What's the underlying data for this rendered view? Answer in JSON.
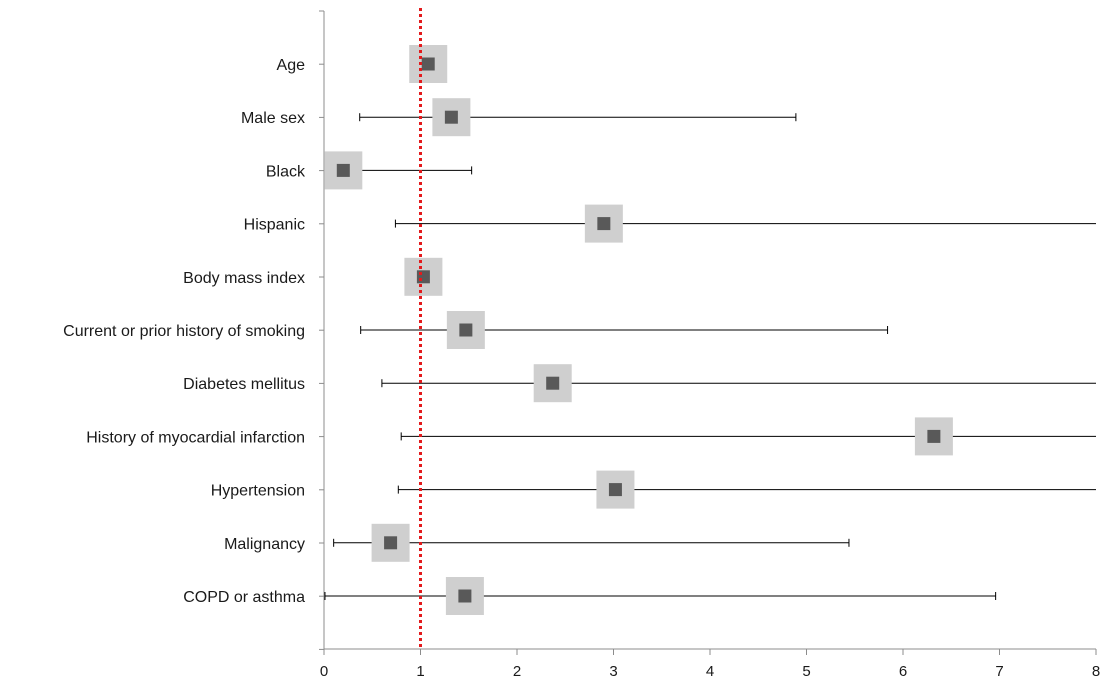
{
  "chart_data": {
    "type": "forest",
    "title": "",
    "xlabel": "",
    "ylabel": "",
    "xlim": [
      0,
      8
    ],
    "xticks": [
      0,
      1,
      2,
      3,
      4,
      5,
      6,
      7,
      8
    ],
    "reference_line": {
      "x": 1,
      "color": "#e31a1c",
      "style": "dotted"
    },
    "grid": false,
    "legend": "none",
    "colors": {
      "point": "#595959",
      "box": "#cfcfcf",
      "whisker": "#000000",
      "axis": "#8c8c8c"
    },
    "rows": [
      {
        "label": "Age",
        "estimate": 1.08,
        "lower": 1.01,
        "upper": 1.16
      },
      {
        "label": "Male sex",
        "estimate": 1.32,
        "lower": 0.37,
        "upper": 4.89
      },
      {
        "label": "Black",
        "estimate": 0.2,
        "lower": 0.03,
        "upper": 1.53
      },
      {
        "label": "Hispanic",
        "estimate": 2.9,
        "lower": 0.74,
        "upper": 8.0,
        "upper_truncated": true
      },
      {
        "label": "Body mass index",
        "estimate": 1.03,
        "lower": 0.96,
        "upper": 1.1
      },
      {
        "label": "Current or prior history of smoking",
        "estimate": 1.47,
        "lower": 0.38,
        "upper": 5.84
      },
      {
        "label": "Diabetes mellitus",
        "estimate": 2.37,
        "lower": 0.6,
        "upper": 8.0,
        "upper_truncated": true
      },
      {
        "label": "History of myocardial infarction",
        "estimate": 6.32,
        "lower": 0.8,
        "upper": 8.0,
        "upper_truncated": true
      },
      {
        "label": "Hypertension",
        "estimate": 3.02,
        "lower": 0.77,
        "upper": 8.0,
        "upper_truncated": true
      },
      {
        "label": "Malignancy",
        "estimate": 0.69,
        "lower": 0.1,
        "upper": 5.44
      },
      {
        "label": "COPD or asthma",
        "estimate": 1.46,
        "lower": 0.01,
        "upper": 6.96
      }
    ]
  }
}
